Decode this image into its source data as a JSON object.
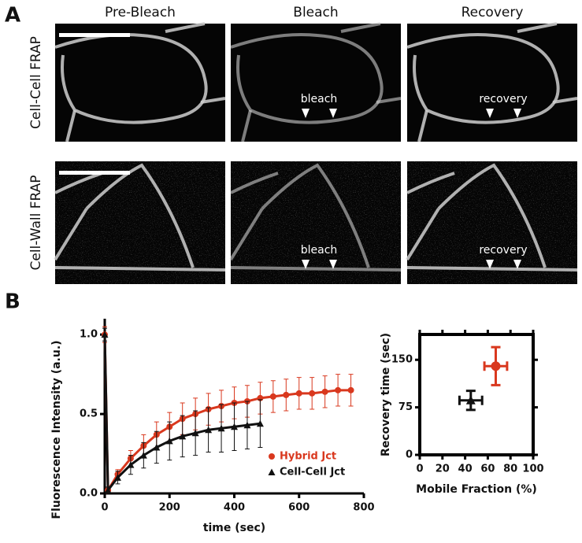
{
  "figure": {
    "panel_a": "A",
    "panel_b": "B",
    "columns": [
      "Pre-Bleach",
      "Bleach",
      "Recovery"
    ],
    "rows": [
      "Cell-Cell FRAP",
      "Cell-Wall FRAP"
    ],
    "annotations": [
      [
        "bleach",
        "recovery"
      ],
      [
        "bleach",
        "recovery"
      ]
    ]
  },
  "chart_data": [
    {
      "type": "line",
      "xlabel": "time (sec)",
      "ylabel": "Fluorescence Intensity (a.u.)",
      "x": [
        0,
        10,
        40,
        80,
        120,
        160,
        200,
        240,
        280,
        320,
        360,
        400,
        440,
        480,
        520,
        560,
        600,
        640,
        680,
        720,
        760
      ],
      "xlim": [
        0,
        800
      ],
      "xticks": [
        0,
        200,
        400,
        600,
        800
      ],
      "ylim": [
        0,
        1.1
      ],
      "yticks": [
        {
          "value": 0,
          "label": "0.0"
        },
        {
          "value": 0.5,
          "label": "0.5"
        },
        {
          "value": 1,
          "label": "1.0"
        }
      ],
      "legend": "lower-right",
      "series": [
        {
          "name": "Hybrid Jct",
          "color": "#d9381e",
          "marker": "circle",
          "values": [
            1.0,
            0.02,
            0.12,
            0.22,
            0.3,
            0.37,
            0.42,
            0.47,
            0.5,
            0.53,
            0.55,
            0.57,
            0.58,
            0.6,
            0.61,
            0.62,
            0.63,
            0.63,
            0.64,
            0.65,
            0.65
          ],
          "errors": [
            0.05,
            0.02,
            0.03,
            0.05,
            0.07,
            0.08,
            0.09,
            0.1,
            0.1,
            0.1,
            0.1,
            0.1,
            0.1,
            0.1,
            0.1,
            0.1,
            0.1,
            0.1,
            0.1,
            0.1,
            0.1
          ]
        },
        {
          "name": "Cell-Cell Jct",
          "color": "#111111",
          "marker": "triangle",
          "values": [
            1.0,
            0.02,
            0.1,
            0.18,
            0.24,
            0.29,
            0.33,
            0.36,
            0.38,
            0.4,
            0.41,
            0.42,
            0.43,
            0.44,
            null,
            null,
            null,
            null,
            null,
            null,
            null
          ],
          "errors": [
            0.04,
            0.02,
            0.04,
            0.06,
            0.08,
            0.1,
            0.12,
            0.13,
            0.14,
            0.14,
            0.15,
            0.15,
            0.15,
            0.15,
            null,
            null,
            null,
            null,
            null,
            null,
            null
          ]
        }
      ]
    },
    {
      "type": "scatter",
      "xlabel": "Mobile Fraction (%)",
      "ylabel": "Recovery time (sec)",
      "xlim": [
        0,
        100
      ],
      "xticks": [
        0,
        20,
        40,
        60,
        80,
        100
      ],
      "ylim": [
        0,
        190
      ],
      "yticks": [
        0,
        75,
        150
      ],
      "series": [
        {
          "color": "#d9381e",
          "marker": "circle",
          "x": [
            67
          ],
          "values": [
            140
          ],
          "x_errors": [
            10
          ],
          "errors": [
            30
          ]
        },
        {
          "color": "#111111",
          "marker": "triangle",
          "x": [
            45
          ],
          "values": [
            86
          ],
          "x_errors": [
            10
          ],
          "errors": [
            15
          ]
        }
      ]
    }
  ]
}
